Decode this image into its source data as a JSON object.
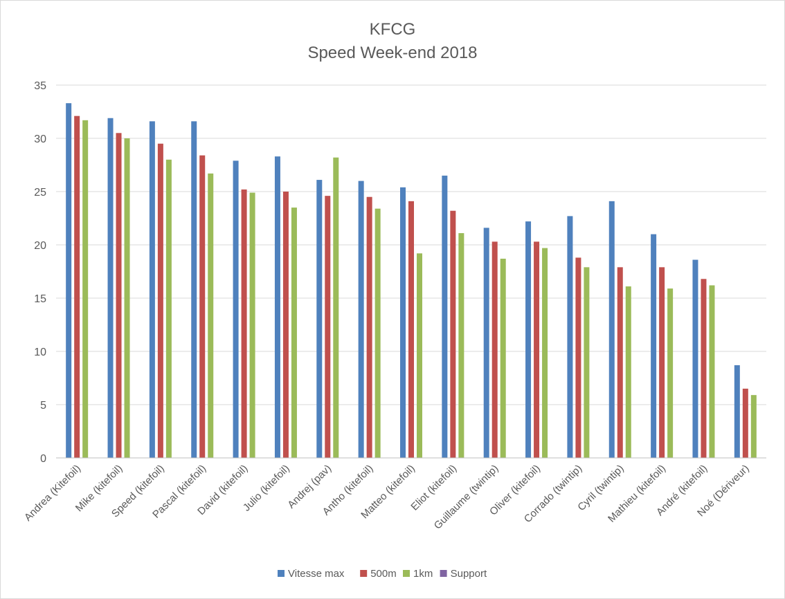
{
  "chart_data": {
    "type": "bar",
    "title": "KFCG",
    "subtitle": "Speed Week-end 2018",
    "xlabel": "",
    "ylabel": "",
    "ylim": [
      0,
      35
    ],
    "yticks": [
      0,
      5,
      10,
      15,
      20,
      25,
      30,
      35
    ],
    "grid": true,
    "legend_position": "bottom",
    "categories": [
      "Andrea (Kitefoil)",
      "Mike (kitefoil)",
      "Speed (kitefoil)",
      "Pascal (kitefoil)",
      "David (kitefoil)",
      "Julio (kitefoil)",
      "Andrej (pav)",
      "Antho (kitefoil)",
      "Matteo (kitefoil)",
      "Eliot (kitefoil)",
      "Guillaume (twintip)",
      "Oliver (kitefoil)",
      "Corrado (twintip)",
      "Cyril (twintip)",
      "Mathieu (kitefoil)",
      "André (kitefoil)",
      "Noé (Dériveur)"
    ],
    "series": [
      {
        "name": "Vitesse max",
        "color": "#4f81bd",
        "values": [
          33.3,
          31.9,
          31.6,
          31.6,
          27.9,
          28.3,
          26.1,
          26.0,
          25.4,
          26.5,
          21.6,
          22.2,
          22.7,
          24.1,
          21.0,
          18.6,
          8.7
        ]
      },
      {
        "name": "500m",
        "color": "#c0504d",
        "values": [
          32.1,
          30.5,
          29.5,
          28.4,
          25.2,
          25.0,
          24.6,
          24.5,
          24.1,
          23.2,
          20.3,
          20.3,
          18.8,
          17.9,
          17.9,
          16.8,
          6.5
        ]
      },
      {
        "name": "1km",
        "color": "#9bbb59",
        "values": [
          31.7,
          30.0,
          28.0,
          26.7,
          24.9,
          23.5,
          28.2,
          23.4,
          19.2,
          21.1,
          18.7,
          19.7,
          17.9,
          16.1,
          15.9,
          16.2,
          5.9
        ]
      },
      {
        "name": "Support",
        "color": "#8064a2",
        "values": [
          null,
          null,
          null,
          null,
          null,
          null,
          null,
          null,
          null,
          null,
          null,
          null,
          null,
          null,
          null,
          null,
          null
        ]
      }
    ]
  }
}
